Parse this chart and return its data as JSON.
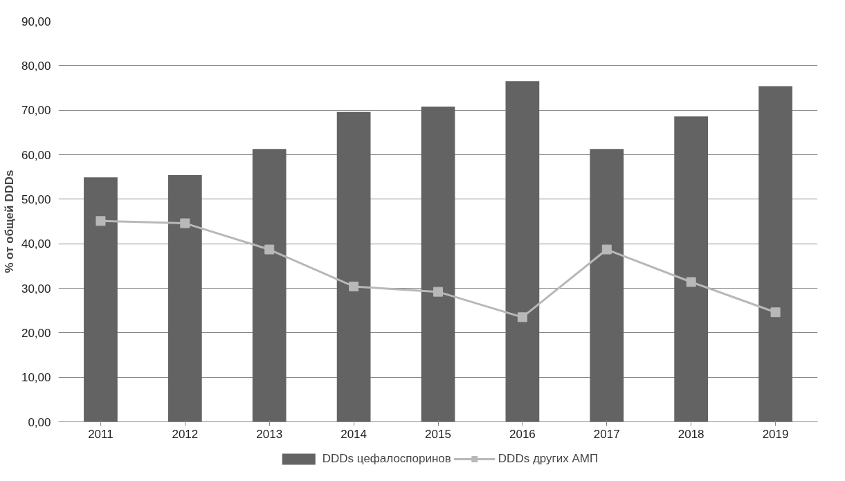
{
  "chart_data": {
    "type": "bar",
    "ylabel": "% от общей DDDs",
    "categories": [
      "2011",
      "2012",
      "2013",
      "2014",
      "2015",
      "2016",
      "2017",
      "2018",
      "2019"
    ],
    "series": [
      {
        "name": "DDDs цефалоспоринов",
        "color": "#636363",
        "values": [
          54.9,
          55.4,
          61.3,
          69.6,
          70.8,
          76.5,
          61.3,
          68.6,
          75.4
        ]
      },
      {
        "name": "DDDs других АМП",
        "type": "line",
        "color": "#b8b8b8",
        "values": [
          45.1,
          44.6,
          38.7,
          30.4,
          29.2,
          23.5,
          38.7,
          31.4,
          24.6
        ]
      }
    ],
    "ylim": [
      0,
      90
    ],
    "yticks": [
      {
        "value": 0,
        "label": "0,00"
      },
      {
        "value": 10,
        "label": "10,00"
      },
      {
        "value": 20,
        "label": "20,00"
      },
      {
        "value": 30,
        "label": "30,00"
      },
      {
        "value": 40,
        "label": "40,00"
      },
      {
        "value": 50,
        "label": "50,00"
      },
      {
        "value": 60,
        "label": "60,00"
      },
      {
        "value": 70,
        "label": "70,00"
      },
      {
        "value": 80,
        "label": "80,00"
      },
      {
        "value": 90,
        "label": "90,00"
      }
    ],
    "grid": "y",
    "legend": "bottom",
    "marker": "square"
  }
}
